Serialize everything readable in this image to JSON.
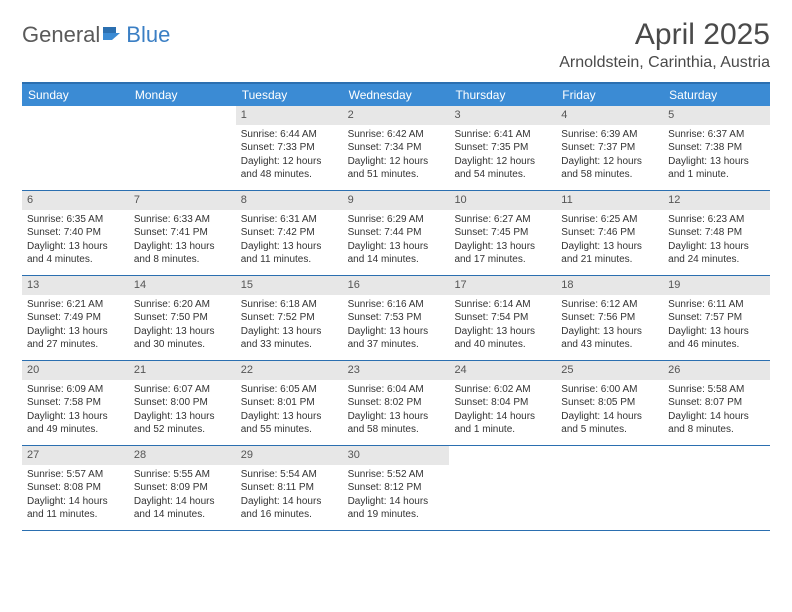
{
  "logo": {
    "part1": "General",
    "part2": "Blue"
  },
  "title": "April 2025",
  "location": "Arnoldstein, Carinthia, Austria",
  "colors": {
    "header_bar": "#3b8bd4",
    "rule": "#2b6fb0",
    "day_num_bg": "#e7e7e7",
    "logo_blue": "#3b7fc4",
    "logo_gray": "#5a5a5a"
  },
  "weekdays": [
    "Sunday",
    "Monday",
    "Tuesday",
    "Wednesday",
    "Thursday",
    "Friday",
    "Saturday"
  ],
  "weeks": [
    [
      null,
      null,
      {
        "n": "1",
        "sr": "Sunrise: 6:44 AM",
        "ss": "Sunset: 7:33 PM",
        "dl": "Daylight: 12 hours and 48 minutes."
      },
      {
        "n": "2",
        "sr": "Sunrise: 6:42 AM",
        "ss": "Sunset: 7:34 PM",
        "dl": "Daylight: 12 hours and 51 minutes."
      },
      {
        "n": "3",
        "sr": "Sunrise: 6:41 AM",
        "ss": "Sunset: 7:35 PM",
        "dl": "Daylight: 12 hours and 54 minutes."
      },
      {
        "n": "4",
        "sr": "Sunrise: 6:39 AM",
        "ss": "Sunset: 7:37 PM",
        "dl": "Daylight: 12 hours and 58 minutes."
      },
      {
        "n": "5",
        "sr": "Sunrise: 6:37 AM",
        "ss": "Sunset: 7:38 PM",
        "dl": "Daylight: 13 hours and 1 minute."
      }
    ],
    [
      {
        "n": "6",
        "sr": "Sunrise: 6:35 AM",
        "ss": "Sunset: 7:40 PM",
        "dl": "Daylight: 13 hours and 4 minutes."
      },
      {
        "n": "7",
        "sr": "Sunrise: 6:33 AM",
        "ss": "Sunset: 7:41 PM",
        "dl": "Daylight: 13 hours and 8 minutes."
      },
      {
        "n": "8",
        "sr": "Sunrise: 6:31 AM",
        "ss": "Sunset: 7:42 PM",
        "dl": "Daylight: 13 hours and 11 minutes."
      },
      {
        "n": "9",
        "sr": "Sunrise: 6:29 AM",
        "ss": "Sunset: 7:44 PM",
        "dl": "Daylight: 13 hours and 14 minutes."
      },
      {
        "n": "10",
        "sr": "Sunrise: 6:27 AM",
        "ss": "Sunset: 7:45 PM",
        "dl": "Daylight: 13 hours and 17 minutes."
      },
      {
        "n": "11",
        "sr": "Sunrise: 6:25 AM",
        "ss": "Sunset: 7:46 PM",
        "dl": "Daylight: 13 hours and 21 minutes."
      },
      {
        "n": "12",
        "sr": "Sunrise: 6:23 AM",
        "ss": "Sunset: 7:48 PM",
        "dl": "Daylight: 13 hours and 24 minutes."
      }
    ],
    [
      {
        "n": "13",
        "sr": "Sunrise: 6:21 AM",
        "ss": "Sunset: 7:49 PM",
        "dl": "Daylight: 13 hours and 27 minutes."
      },
      {
        "n": "14",
        "sr": "Sunrise: 6:20 AM",
        "ss": "Sunset: 7:50 PM",
        "dl": "Daylight: 13 hours and 30 minutes."
      },
      {
        "n": "15",
        "sr": "Sunrise: 6:18 AM",
        "ss": "Sunset: 7:52 PM",
        "dl": "Daylight: 13 hours and 33 minutes."
      },
      {
        "n": "16",
        "sr": "Sunrise: 6:16 AM",
        "ss": "Sunset: 7:53 PM",
        "dl": "Daylight: 13 hours and 37 minutes."
      },
      {
        "n": "17",
        "sr": "Sunrise: 6:14 AM",
        "ss": "Sunset: 7:54 PM",
        "dl": "Daylight: 13 hours and 40 minutes."
      },
      {
        "n": "18",
        "sr": "Sunrise: 6:12 AM",
        "ss": "Sunset: 7:56 PM",
        "dl": "Daylight: 13 hours and 43 minutes."
      },
      {
        "n": "19",
        "sr": "Sunrise: 6:11 AM",
        "ss": "Sunset: 7:57 PM",
        "dl": "Daylight: 13 hours and 46 minutes."
      }
    ],
    [
      {
        "n": "20",
        "sr": "Sunrise: 6:09 AM",
        "ss": "Sunset: 7:58 PM",
        "dl": "Daylight: 13 hours and 49 minutes."
      },
      {
        "n": "21",
        "sr": "Sunrise: 6:07 AM",
        "ss": "Sunset: 8:00 PM",
        "dl": "Daylight: 13 hours and 52 minutes."
      },
      {
        "n": "22",
        "sr": "Sunrise: 6:05 AM",
        "ss": "Sunset: 8:01 PM",
        "dl": "Daylight: 13 hours and 55 minutes."
      },
      {
        "n": "23",
        "sr": "Sunrise: 6:04 AM",
        "ss": "Sunset: 8:02 PM",
        "dl": "Daylight: 13 hours and 58 minutes."
      },
      {
        "n": "24",
        "sr": "Sunrise: 6:02 AM",
        "ss": "Sunset: 8:04 PM",
        "dl": "Daylight: 14 hours and 1 minute."
      },
      {
        "n": "25",
        "sr": "Sunrise: 6:00 AM",
        "ss": "Sunset: 8:05 PM",
        "dl": "Daylight: 14 hours and 5 minutes."
      },
      {
        "n": "26",
        "sr": "Sunrise: 5:58 AM",
        "ss": "Sunset: 8:07 PM",
        "dl": "Daylight: 14 hours and 8 minutes."
      }
    ],
    [
      {
        "n": "27",
        "sr": "Sunrise: 5:57 AM",
        "ss": "Sunset: 8:08 PM",
        "dl": "Daylight: 14 hours and 11 minutes."
      },
      {
        "n": "28",
        "sr": "Sunrise: 5:55 AM",
        "ss": "Sunset: 8:09 PM",
        "dl": "Daylight: 14 hours and 14 minutes."
      },
      {
        "n": "29",
        "sr": "Sunrise: 5:54 AM",
        "ss": "Sunset: 8:11 PM",
        "dl": "Daylight: 14 hours and 16 minutes."
      },
      {
        "n": "30",
        "sr": "Sunrise: 5:52 AM",
        "ss": "Sunset: 8:12 PM",
        "dl": "Daylight: 14 hours and 19 minutes."
      },
      null,
      null,
      null
    ]
  ]
}
